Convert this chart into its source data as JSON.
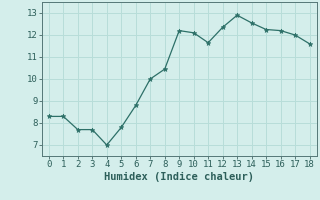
{
  "x": [
    0,
    1,
    2,
    3,
    4,
    5,
    6,
    7,
    8,
    9,
    10,
    11,
    12,
    13,
    14,
    15,
    16,
    17,
    18
  ],
  "y": [
    8.3,
    8.3,
    7.7,
    7.7,
    7.0,
    7.8,
    8.8,
    10.0,
    10.45,
    12.2,
    12.1,
    11.65,
    12.35,
    12.9,
    12.55,
    12.25,
    12.2,
    12.0,
    11.6
  ],
  "line_color": "#2d7068",
  "marker_color": "#2d7068",
  "bg_color": "#d4eeeb",
  "grid_color": "#b8ddd9",
  "xlabel": "Humidex (Indice chaleur)",
  "ylim": [
    6.5,
    13.5
  ],
  "xlim": [
    -0.5,
    18.5
  ],
  "yticks": [
    7,
    8,
    9,
    10,
    11,
    12,
    13
  ],
  "xticks": [
    0,
    1,
    2,
    3,
    4,
    5,
    6,
    7,
    8,
    9,
    10,
    11,
    12,
    13,
    14,
    15,
    16,
    17,
    18
  ],
  "xlabel_fontsize": 7.5,
  "tick_fontsize": 6.5
}
